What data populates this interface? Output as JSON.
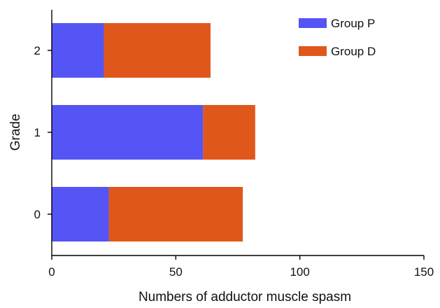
{
  "chart_data": {
    "type": "bar",
    "orientation": "horizontal",
    "stacked": true,
    "categories": [
      "0",
      "1",
      "2"
    ],
    "series": [
      {
        "name": "Group P",
        "values": [
          23,
          61,
          21
        ],
        "color": "#5555f5"
      },
      {
        "name": "Group D",
        "values": [
          54,
          21,
          43
        ],
        "color": "#e0571c"
      }
    ],
    "xlabel": "Numbers of adductor muscle spasm",
    "ylabel": "Grade",
    "xlim": [
      0,
      150
    ],
    "xticks": [
      "0",
      "50",
      "100",
      "150"
    ],
    "grid": false,
    "legend_position": "top-right"
  }
}
